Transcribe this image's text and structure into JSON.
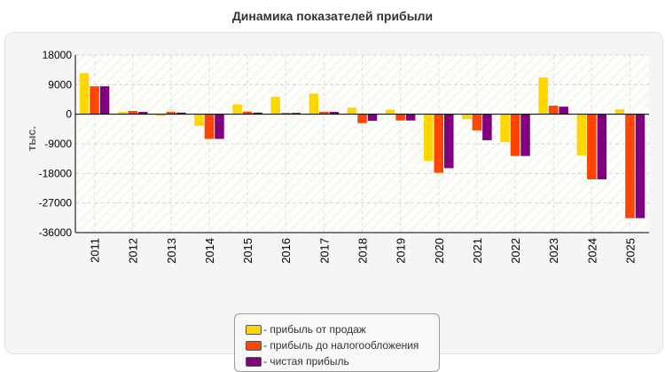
{
  "chart_data": {
    "type": "bar",
    "title": "Динамика показателей прибыли",
    "ylabel": "тыс.",
    "xlabel": "",
    "ylim": [
      -36000,
      18000
    ],
    "yticks": [
      "18000",
      "9000",
      "0",
      "-9000",
      "-18000",
      "-27000",
      "-36000"
    ],
    "grid": true,
    "legend_position": "bottom",
    "categories": [
      "2011",
      "2012",
      "2013",
      "2014",
      "2015",
      "2016",
      "2017",
      "2018",
      "2019",
      "2020",
      "2021",
      "2022",
      "2023",
      "2024",
      "2025"
    ],
    "series": [
      {
        "name": "- прибыль от продаж",
        "color": "#ffd700",
        "values": [
          12500,
          700,
          -500,
          -3500,
          3000,
          5300,
          6300,
          2000,
          1400,
          -14200,
          -1500,
          -8500,
          11200,
          -12500,
          1500
        ]
      },
      {
        "name": "- прибыль до налогообложения",
        "color": "#ff4500",
        "values": [
          8500,
          1000,
          700,
          -7500,
          800,
          400,
          700,
          -2700,
          -1900,
          -17800,
          -4900,
          -12700,
          2600,
          -19800,
          -31600
        ]
      },
      {
        "name": "- чистая прибыль",
        "color": "#800080",
        "values": [
          8500,
          700,
          500,
          -7500,
          500,
          400,
          700,
          -2000,
          -1900,
          -16400,
          -7900,
          -12700,
          2300,
          -19800,
          -31600
        ]
      }
    ]
  }
}
